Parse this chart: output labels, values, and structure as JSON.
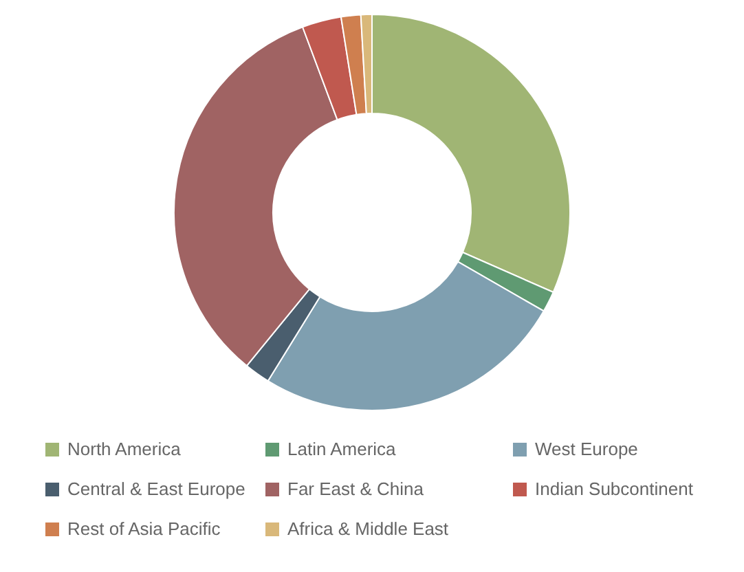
{
  "chart_data": {
    "type": "donut",
    "categories": [
      "North America",
      "Latin America",
      "West Europe",
      "Central & East Europe",
      "Far East & China",
      "Indian Subcontinent",
      "Rest of Asia Pacific",
      "Africa & Middle East"
    ],
    "values": [
      31.6,
      1.7,
      25.5,
      2.1,
      33.4,
      3.2,
      1.6,
      0.9
    ],
    "colors": [
      "#a0b574",
      "#5f9a72",
      "#7f9fb0",
      "#4a5e6e",
      "#a06363",
      "#c0594f",
      "#cf7f4f",
      "#d9b87a"
    ],
    "legend": "bottom"
  }
}
